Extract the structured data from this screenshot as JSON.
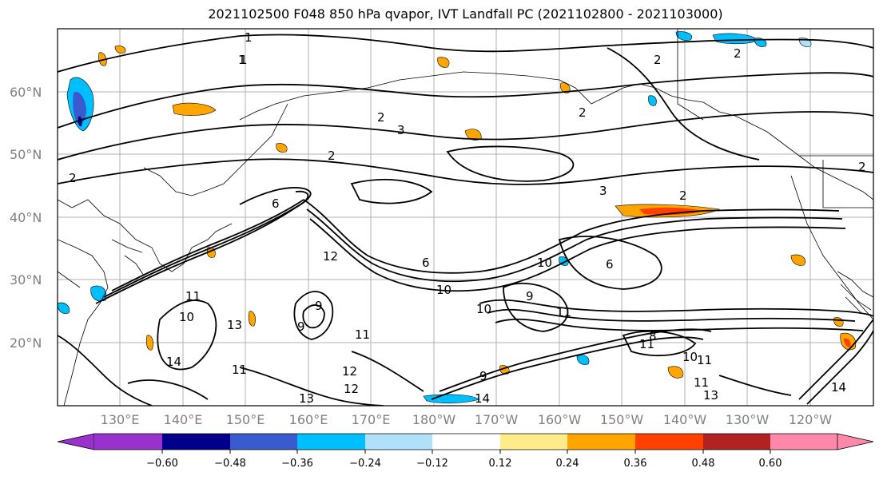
{
  "title": "2021102500 F048 850 hPa qvapor, IVT Landfall PC (2021102800 - 2021103000)",
  "map": {
    "lat_labels": [
      "60°N",
      "50°N",
      "40°N",
      "30°N",
      "20°N"
    ],
    "lon_labels": [
      "130°E",
      "140°E",
      "150°E",
      "160°E",
      "170°E",
      "180°W",
      "170°W",
      "160°W",
      "150°W",
      "140°W",
      "130°W",
      "120°W"
    ],
    "contour_labels": [
      "1",
      "1",
      "2",
      "3",
      "2",
      "2",
      "2",
      "2",
      "3",
      "2",
      "6",
      "12",
      "10",
      "6",
      "10",
      "11",
      "6",
      "9",
      "9",
      "11",
      "11",
      "10",
      "13",
      "14",
      "11",
      "13",
      "12",
      "12",
      "10",
      "9",
      "14",
      "9",
      "11",
      "11",
      "8",
      "10",
      "11",
      "13",
      "14",
      "1",
      "2",
      "2"
    ]
  },
  "colorbar": {
    "colors": [
      "#9932cc",
      "#00008b",
      "#3a5bcd",
      "#00bfff",
      "#b0e0fa",
      "#ffffff",
      "#ffeb8a",
      "#ffa500",
      "#ff4000",
      "#b22222",
      "#ff88aa"
    ],
    "tick_labels": [
      "−0.60",
      "−0.48",
      "−0.36",
      "−0.24",
      "−0.12",
      "0.12",
      "0.24",
      "0.36",
      "0.48",
      "0.60"
    ]
  }
}
